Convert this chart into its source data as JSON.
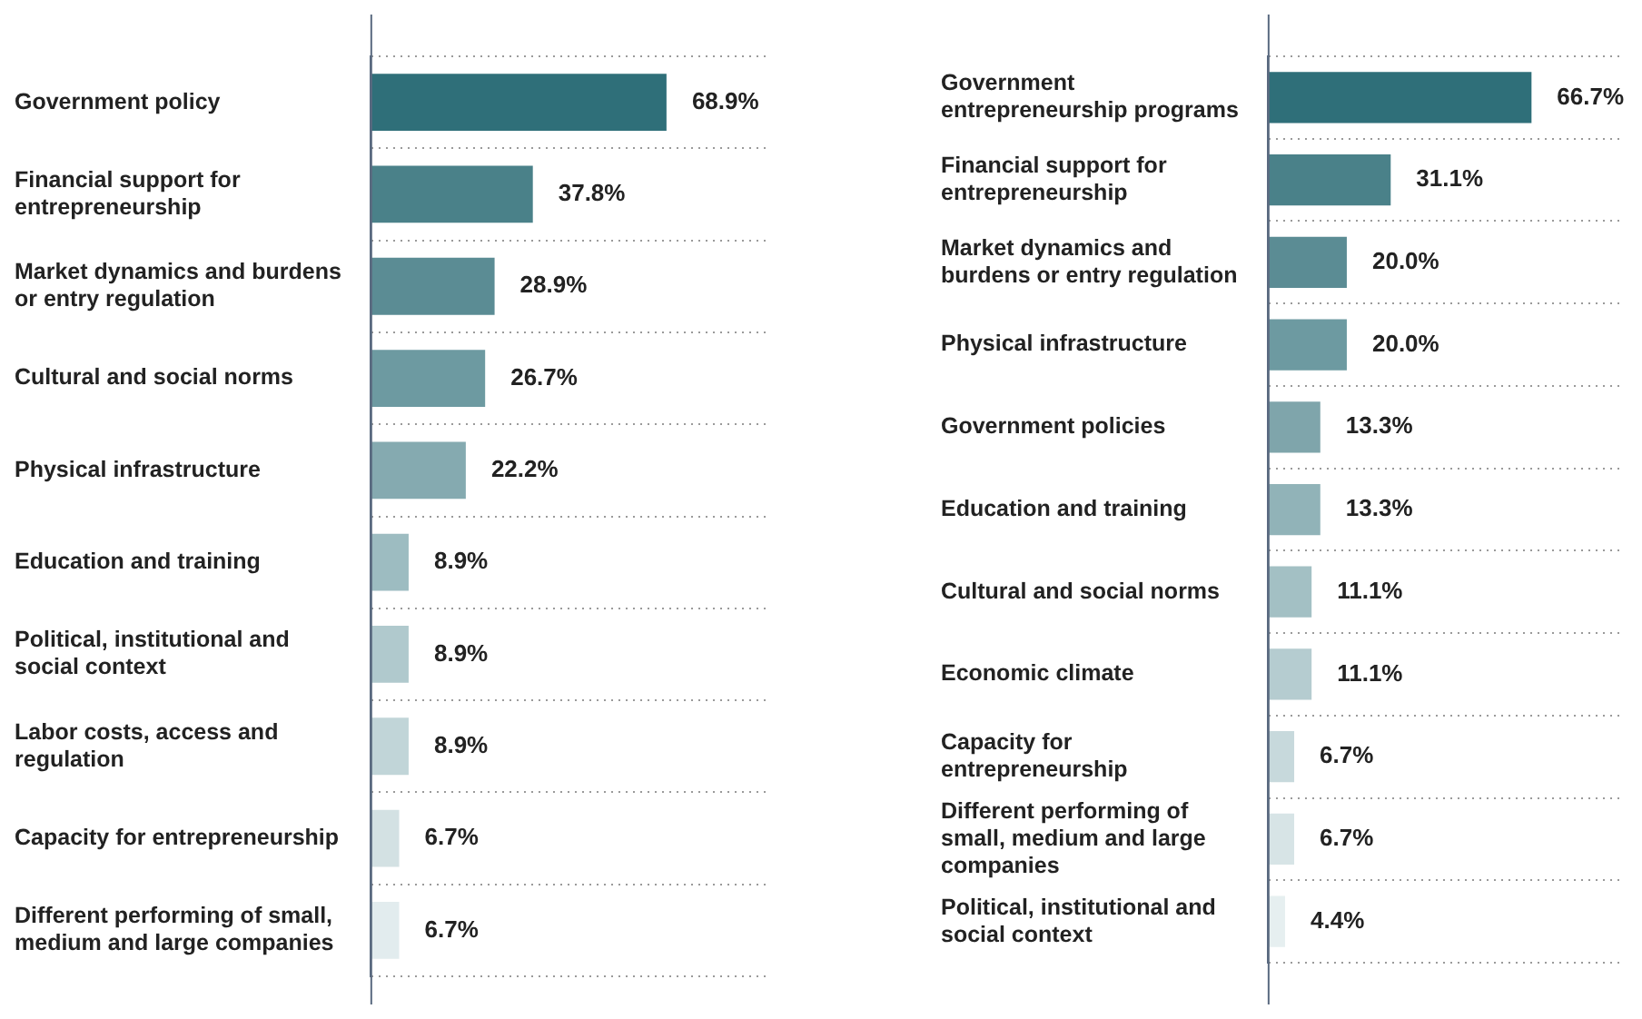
{
  "chart_data": [
    {
      "type": "bar",
      "orientation": "horizontal",
      "grid": "y",
      "legend": false,
      "tick_labels": "y",
      "categories": [
        "Government policy",
        "Financial support for entrepreneurship",
        "Market dynamics and burdens or entry regulation",
        "Cultural and social norms",
        "Physical infrastructure",
        "Education and training",
        "Political, institutional and social context",
        "Labor costs, access and regulation",
        "Capacity for entrepreneurship",
        "Different performing of small, medium and large companies"
      ],
      "values": [
        68.9,
        37.8,
        28.9,
        26.7,
        22.2,
        8.9,
        8.9,
        8.9,
        6.7,
        6.7
      ],
      "value_labels": [
        "68.9%",
        "37.8%",
        "28.9%",
        "26.7%",
        "22.2%",
        "8.9%",
        "8.9%",
        "8.9%",
        "6.7%",
        "6.7%"
      ],
      "colors": [
        "#2f6f79",
        "#4a8189",
        "#5b8c94",
        "#6d9aa1",
        "#85aab0",
        "#9dbcc1",
        "#b0c9cd",
        "#c1d5d8",
        "#d3e1e3",
        "#e2ecee"
      ]
    },
    {
      "type": "bar",
      "orientation": "horizontal",
      "grid": "y",
      "legend": false,
      "tick_labels": "y",
      "categories": [
        "Government entrepreneurship programs",
        "Financial support for entrepreneurship",
        "Market dynamics and burdens or entry regulation",
        "Physical infrastructure",
        "Government policies",
        "Education and training",
        "Cultural and social norms",
        "Economic climate",
        "Capacity for entrepreneurship",
        "Different performing of small, medium and large companies",
        "Political, institutional and social context"
      ],
      "values": [
        66.7,
        31.1,
        20.0,
        20.0,
        13.3,
        13.3,
        11.1,
        11.1,
        6.7,
        6.7,
        4.4
      ],
      "value_labels": [
        "66.7%",
        "31.1%",
        "20.0%",
        "20.0%",
        "13.3%",
        "13.3%",
        "11.1%",
        "11.1%",
        "6.7%",
        "6.7%",
        "4.4%"
      ],
      "colors": [
        "#2f6f79",
        "#4a8189",
        "#5b8c94",
        "#6d9aa1",
        "#7fa5ab",
        "#91b3b8",
        "#a3c0c4",
        "#b5ccd0",
        "#c7d9dc",
        "#d7e4e6",
        "#e6eff0"
      ]
    }
  ]
}
